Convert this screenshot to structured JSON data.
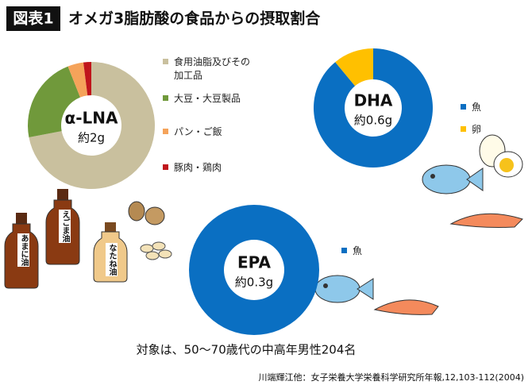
{
  "figure_label": "図表1",
  "title": "オメガ3脂肪酸の食品からの摂取割合",
  "note": "対象は、50〜70歳代の中高年男性204名",
  "source": "川端輝江他：女子栄養大学栄養科学研究所年報,12,103-112(2004)",
  "illustration_labels": [
    "えごま油",
    "あまに油",
    "なたね油"
  ],
  "chart_data": [
    {
      "type": "donut",
      "title": "α-LNA",
      "subtitle": "約2g",
      "categories": [
        "食用油脂及びその加工品",
        "大豆・大豆製品",
        "パン・ご飯",
        "豚肉・鶏肉"
      ],
      "values": [
        72,
        22,
        4,
        2
      ],
      "colors": [
        "#c9c09e",
        "#70993b",
        "#f5a35a",
        "#c0161c"
      ]
    },
    {
      "type": "donut",
      "title": "DHA",
      "subtitle": "約0.6g",
      "categories": [
        "魚",
        "卵"
      ],
      "values": [
        89,
        11
      ],
      "colors": [
        "#0a6fc2",
        "#ffc000"
      ]
    },
    {
      "type": "donut",
      "title": "EPA",
      "subtitle": "約0.3g",
      "categories": [
        "魚"
      ],
      "values": [
        100
      ],
      "colors": [
        "#0a6fc2"
      ]
    }
  ]
}
